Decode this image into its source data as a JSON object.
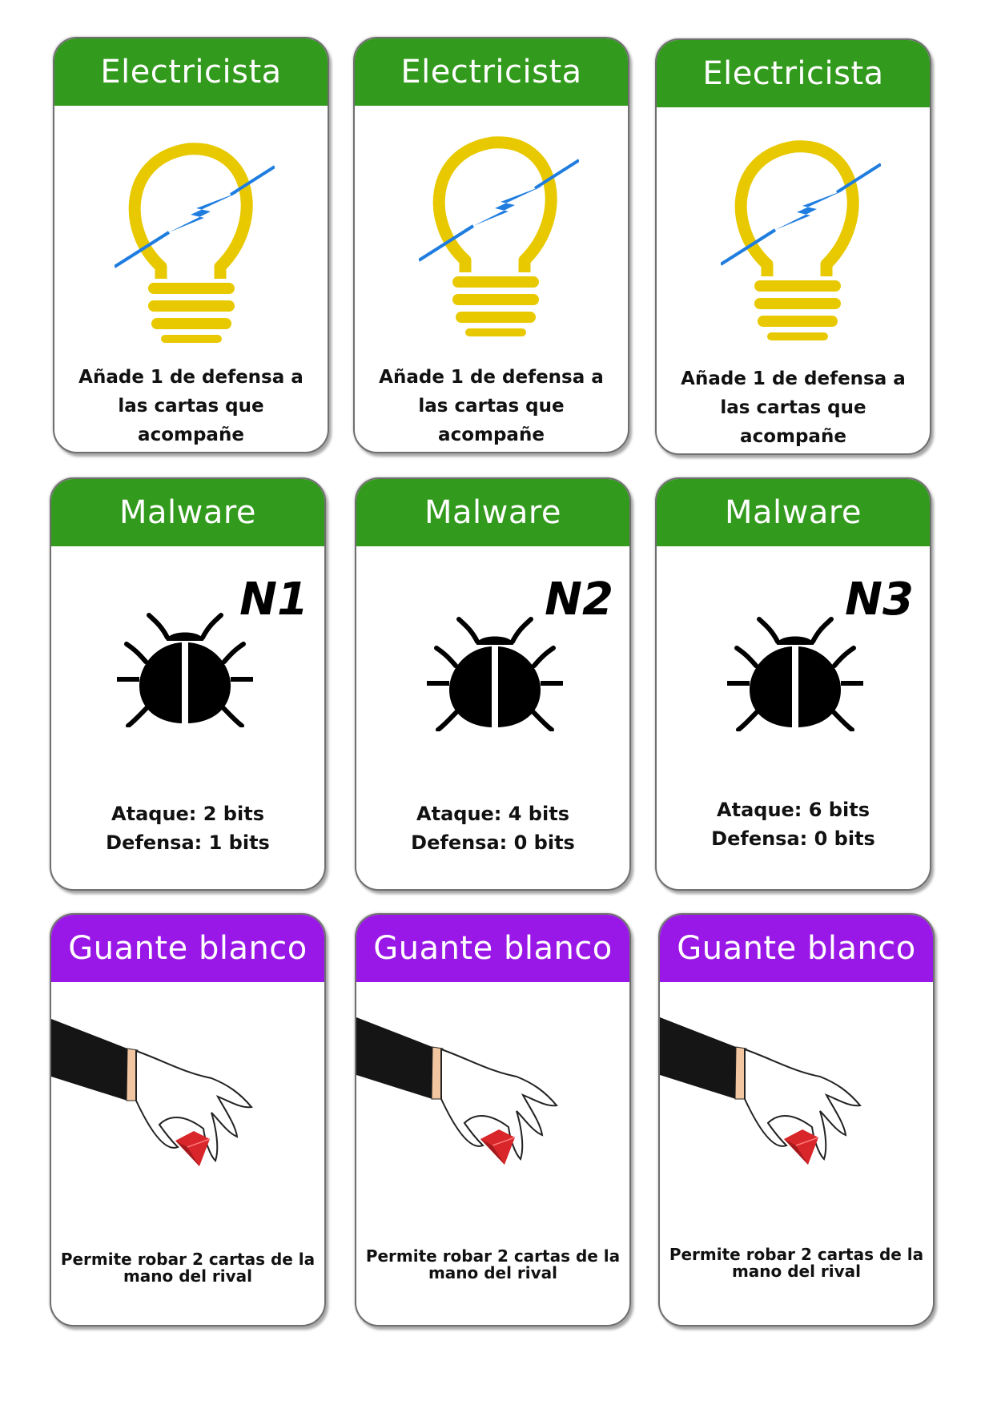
{
  "cards": [
    {
      "title": "Electricista",
      "description": "Añade 1 de defensa a las cartas que acompañe"
    },
    {
      "title": "Electricista",
      "description": "Añade 1 de defensa a las cartas que acompañe"
    },
    {
      "title": "Electricista",
      "description": "Añade 1 de defensa a las cartas que acompañe"
    },
    {
      "title": "Malware",
      "level": "N1",
      "stats": [
        "Ataque: 2 bits",
        "Defensa: 1 bits"
      ]
    },
    {
      "title": "Malware",
      "level": "N2",
      "stats": [
        "Ataque: 4 bits",
        "Defensa: 0 bits"
      ]
    },
    {
      "title": "Malware",
      "level": "N3",
      "stats": [
        "Ataque: 6 bits",
        "Defensa: 0 bits"
      ]
    },
    {
      "title": "Guante blanco",
      "description": "Permite robar 2 cartas de la mano del rival"
    },
    {
      "title": "Guante blanco",
      "description": "Permite robar 2 cartas de la mano del rival"
    },
    {
      "title": "Guante blanco",
      "description": "Permite robar 2 cartas de la mano del rival"
    }
  ],
  "colors": {
    "header_green": "#329a1c",
    "header_purple": "#9a18e7",
    "bulb_yellow": "#e8c900",
    "bolt_blue": "#1f7de0",
    "gem_red": "#d8262b"
  },
  "icons": [
    "lightbulb-icon",
    "bug-icon",
    "gloved-hand-icon"
  ]
}
